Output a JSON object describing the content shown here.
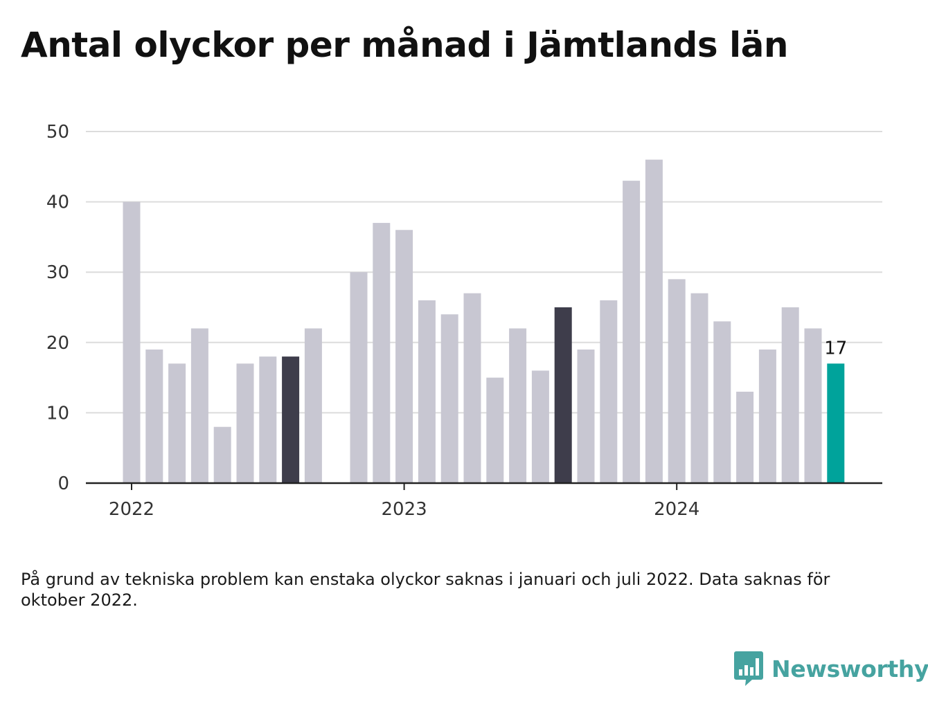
{
  "title": "Antal olyckor per månad i Jämtlands län",
  "note": "På grund av tekniska problem kan enstaka olyckor saknas i januari och juli 2022. Data saknas för oktober 2022.",
  "brand": {
    "name": "Newsworthy",
    "icon": "newsworthy-logo-icon",
    "color": "#46a3a0"
  },
  "colors": {
    "default": "#c8c7d2",
    "highlight": "#3e3d4b",
    "latest": "#00a39b",
    "grid": "#dcdcdc",
    "axis": "#222222"
  },
  "chart_data": {
    "type": "bar",
    "title": "Antal olyckor per månad i Jämtlands län",
    "xlabel": "",
    "ylabel": "",
    "ylim": [
      0,
      50
    ],
    "yticks": [
      0,
      10,
      20,
      30,
      40,
      50
    ],
    "xticks": [
      {
        "label": "2022",
        "index": 0
      },
      {
        "label": "2023",
        "index": 12
      },
      {
        "label": "2024",
        "index": 24
      }
    ],
    "grid": true,
    "categories": [
      "2022-01",
      "2022-02",
      "2022-03",
      "2022-04",
      "2022-05",
      "2022-06",
      "2022-07",
      "2022-08",
      "2022-09",
      "2022-10",
      "2022-11",
      "2022-12",
      "2023-01",
      "2023-02",
      "2023-03",
      "2023-04",
      "2023-05",
      "2023-06",
      "2023-07",
      "2023-08",
      "2023-09",
      "2023-10",
      "2023-11",
      "2023-12",
      "2024-01",
      "2024-02",
      "2024-03",
      "2024-04",
      "2024-05",
      "2024-06",
      "2024-07",
      "2024-08"
    ],
    "values": [
      40,
      19,
      17,
      22,
      8,
      17,
      18,
      18,
      22,
      null,
      30,
      37,
      36,
      26,
      24,
      27,
      15,
      22,
      16,
      25,
      19,
      26,
      43,
      46,
      29,
      27,
      23,
      13,
      19,
      25,
      22,
      17
    ],
    "highlight_indices": [
      7,
      19
    ],
    "latest_index": 31,
    "value_label": {
      "index": 31,
      "text": "17"
    }
  }
}
